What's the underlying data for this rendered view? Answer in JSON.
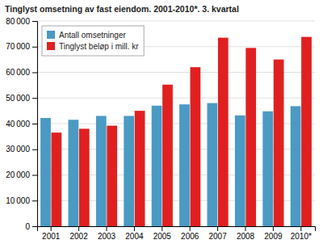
{
  "chart_data": {
    "type": "bar",
    "title": "Tinglyst omsetning av fast eiendom. 2001-2010*. 3. kvartal",
    "categories": [
      "2001",
      "2002",
      "2003",
      "2004",
      "2005",
      "2006",
      "2007",
      "2008",
      "2009",
      "2010*"
    ],
    "series": [
      {
        "name": "Antall omsetninger",
        "color": "#4a9ac4",
        "values": [
          42200,
          41500,
          43000,
          43000,
          47000,
          47500,
          48000,
          43200,
          44800,
          46800
        ]
      },
      {
        "name": "Tinglyst beløp i mill. kr",
        "color": "#e02020",
        "values": [
          36500,
          38000,
          39200,
          45000,
          55200,
          62000,
          73500,
          69500,
          65000,
          73800
        ]
      }
    ],
    "ylim": [
      0,
      80000
    ],
    "yticks": [
      0,
      {
        "value": 10000,
        "label": "10 000"
      },
      {
        "value": 20000,
        "label": "20 000"
      },
      {
        "value": 30000,
        "label": "30 000"
      },
      {
        "value": 40000,
        "label": "40 000"
      },
      {
        "value": 50000,
        "label": "50 000"
      },
      {
        "value": 60000,
        "label": "60 000"
      },
      {
        "value": 70000,
        "label": "70 000"
      },
      {
        "value": 80000,
        "label": "80 000"
      }
    ],
    "grid": true,
    "legend": "upper-left"
  }
}
